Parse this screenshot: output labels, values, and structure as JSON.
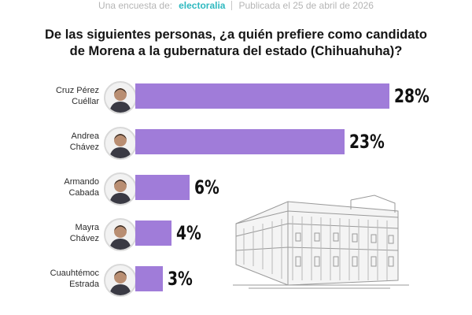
{
  "header": {
    "survey_text": "Una encuesta de:",
    "brand": "electoralia",
    "published": "Publicada el 25 de abril de 2026"
  },
  "question": {
    "line1": "De las siguientes personas, ¿a quién prefiere como candidato",
    "line2": "de Morena a la gubernatura del estado (Chihuahuha)?"
  },
  "chart_data": {
    "type": "bar",
    "orientation": "horizontal",
    "title": "De las siguientes personas, ¿a quién prefiere como candidato de Morena a la gubernatura del estado (Chihuahuha)?",
    "categories": [
      [
        "Cruz Pérez",
        "Cuéllar"
      ],
      [
        "Andrea",
        "Chávez"
      ],
      [
        "Armando",
        "Cabada"
      ],
      [
        "Mayra",
        "Chávez"
      ],
      [
        "Cuauhtémoc",
        "Estrada"
      ]
    ],
    "values": [
      28,
      23,
      6,
      4,
      3
    ],
    "labels": [
      "28%",
      "23%",
      "6%",
      "4%",
      "3%"
    ],
    "unit": "%",
    "bar_color": "#a07cd9"
  }
}
